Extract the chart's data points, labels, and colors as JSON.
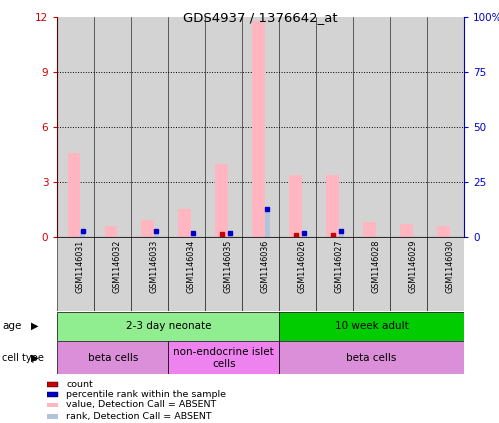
{
  "title": "GDS4937 / 1376642_at",
  "samples": [
    "GSM1146031",
    "GSM1146032",
    "GSM1146033",
    "GSM1146034",
    "GSM1146035",
    "GSM1146036",
    "GSM1146026",
    "GSM1146027",
    "GSM1146028",
    "GSM1146029",
    "GSM1146030"
  ],
  "pink_bar_values": [
    4.6,
    0.6,
    0.9,
    1.5,
    4.0,
    11.8,
    3.4,
    3.4,
    0.8,
    0.7,
    0.6
  ],
  "blue_bar_values": [
    0.3,
    0.0,
    0.3,
    0.2,
    0.2,
    1.5,
    0.2,
    0.3,
    0.0,
    0.0,
    0.0
  ],
  "red_dot_values": [
    0.0,
    0.0,
    0.0,
    0.0,
    0.15,
    0.0,
    0.1,
    0.1,
    0.0,
    0.0,
    0.0
  ],
  "ylim_max": 12,
  "yticks": [
    0,
    3,
    6,
    9,
    12
  ],
  "ytick_labels_left": [
    "0",
    "3",
    "6",
    "9",
    "12"
  ],
  "ytick_labels_right": [
    "0",
    "25",
    "50",
    "75",
    "100%"
  ],
  "age_groups": [
    {
      "label": "2-3 day neonate",
      "start": 0,
      "end": 6,
      "color": "#90EE90"
    },
    {
      "label": "10 week adult",
      "start": 6,
      "end": 11,
      "color": "#00CC00"
    }
  ],
  "cell_type_groups": [
    {
      "label": "beta cells",
      "start": 0,
      "end": 3,
      "color": "#DA8FD8"
    },
    {
      "label": "non-endocrine islet\ncells",
      "start": 3,
      "end": 6,
      "color": "#EE82EE"
    },
    {
      "label": "beta cells",
      "start": 6,
      "end": 11,
      "color": "#DA8FD8"
    }
  ],
  "legend_items": [
    {
      "color": "#CC0000",
      "label": "count"
    },
    {
      "color": "#0000CC",
      "label": "percentile rank within the sample"
    },
    {
      "color": "#FFB6C1",
      "label": "value, Detection Call = ABSENT"
    },
    {
      "color": "#B0C4DE",
      "label": "rank, Detection Call = ABSENT"
    }
  ],
  "pink_color": "#FFB6C1",
  "blue_color": "#B0C4DE",
  "red_color": "#CC0000",
  "dark_blue_color": "#0000CC",
  "left_axis_color": "#CC0000",
  "right_axis_color": "#0000CC",
  "bar_bg_color": "#D3D3D3"
}
